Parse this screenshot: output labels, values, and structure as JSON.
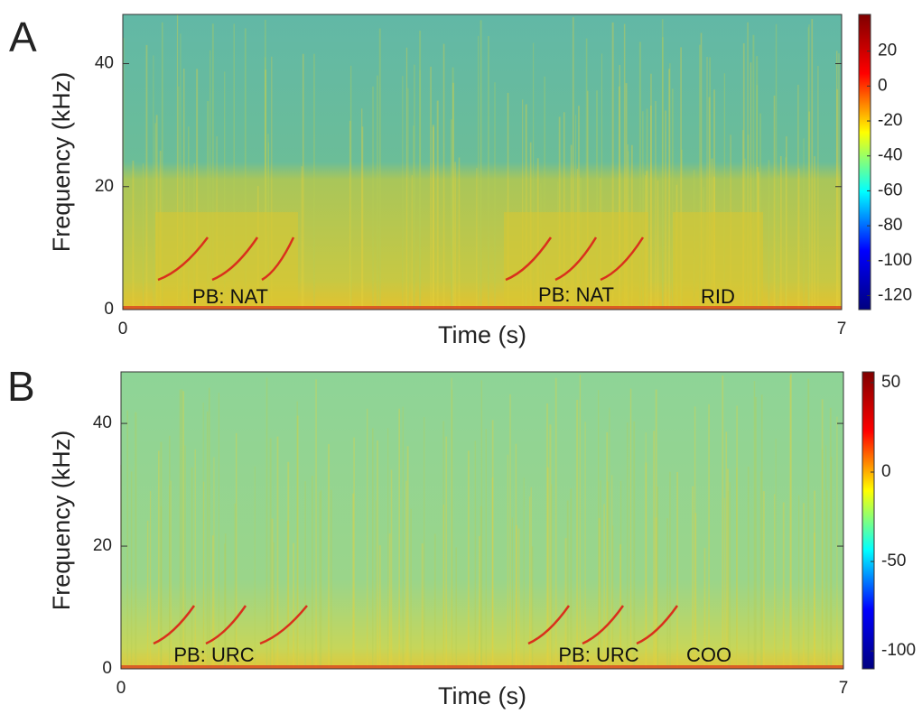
{
  "chart_data": [
    {
      "type": "spectrogram",
      "panel_label": "A",
      "xlabel": "Time (s)",
      "ylabel": "Frequency (kHz)",
      "xlim": [
        0,
        7
      ],
      "xticks": [
        0,
        7
      ],
      "ylim": [
        0,
        48
      ],
      "yticks": [
        0,
        20,
        40
      ],
      "annotations": [
        "PB: NAT",
        "PB: NAT",
        "RID"
      ],
      "colorbar": {
        "colormap": "jet",
        "lim": [
          -128,
          41
        ],
        "ticks": [
          -120,
          -100,
          -80,
          -60,
          -40,
          -20,
          0,
          20
        ]
      }
    },
    {
      "type": "spectrogram",
      "panel_label": "B",
      "xlabel": "Time (s)",
      "ylabel": "Frequency (kHz)",
      "xlim": [
        0,
        7
      ],
      "xticks": [
        0,
        7
      ],
      "ylim": [
        0,
        48.4
      ],
      "yticks": [
        0,
        20,
        40
      ],
      "annotations": [
        "PB: URC",
        "PB: URC",
        "COO"
      ],
      "colorbar": {
        "colormap": "jet",
        "lim": [
          -110,
          56
        ],
        "ticks": [
          -100,
          -50,
          0,
          50
        ]
      }
    }
  ]
}
